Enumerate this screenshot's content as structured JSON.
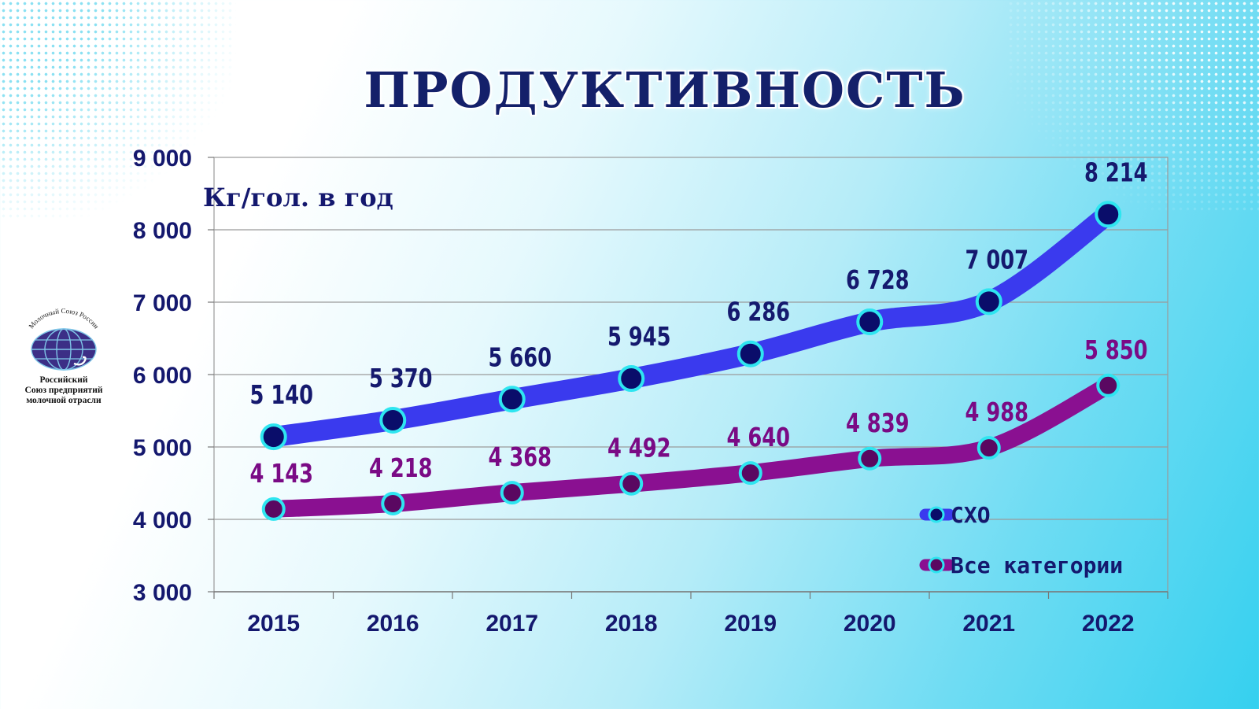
{
  "title": "ПРОДУКТИВНОСТЬ",
  "logo": {
    "top_text": "Молочный Союз России",
    "bottom_lines": [
      "Российский",
      "Союз предприятий",
      "молочной отрасли"
    ]
  },
  "colors": {
    "series_1": "#3a3aee",
    "series_2": "#8a1091",
    "marker_border": "#2ee5f0",
    "label_1": "#15196e",
    "label_2": "#7a0a85",
    "axis_text": "#14186e"
  },
  "chart_data": {
    "type": "line",
    "title": "ПРОДУКТИВНОСТЬ",
    "ylabel": "Кг/гол. в год",
    "xlabel": "",
    "categories": [
      "2015",
      "2016",
      "2017",
      "2018",
      "2019",
      "2020",
      "2021",
      "2022"
    ],
    "ylim": [
      3000,
      9000
    ],
    "yticks": [
      3000,
      4000,
      5000,
      6000,
      7000,
      8000,
      9000
    ],
    "ytick_labels": [
      "3 000",
      "4 000",
      "5 000",
      "6 000",
      "7 000",
      "8 000",
      "9 000"
    ],
    "grid": true,
    "legend_position": "bottom-right",
    "series": [
      {
        "name": "СХО",
        "values": [
          5140,
          5370,
          5660,
          5945,
          6286,
          6728,
          7007,
          8214
        ],
        "labels": [
          "5 140",
          "5 370",
          "5 660",
          "5 945",
          "6 286",
          "6 728",
          "7 007",
          "8 214"
        ]
      },
      {
        "name": "Все категории",
        "values": [
          4143,
          4218,
          4368,
          4492,
          4640,
          4839,
          4988,
          5850
        ],
        "labels": [
          "4 143",
          "4 218",
          "4 368",
          "4 492",
          "4 640",
          "4 839",
          "4 988",
          "5 850"
        ]
      }
    ]
  }
}
